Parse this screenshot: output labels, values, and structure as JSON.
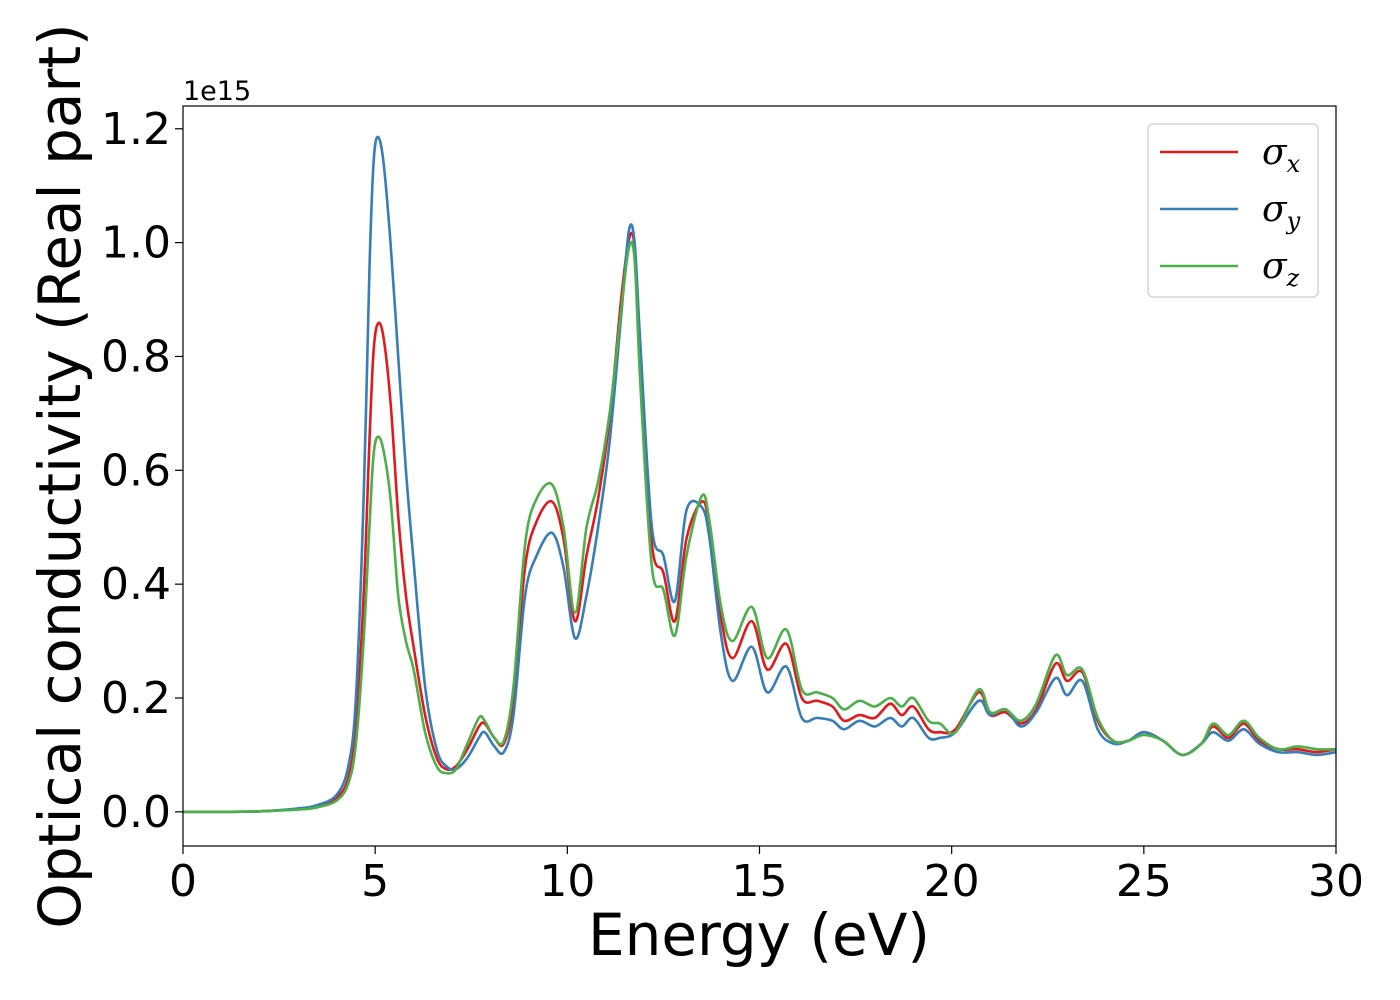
{
  "chart_data": {
    "type": "line",
    "title": "",
    "xlabel": "Energy (eV)",
    "ylabel": "Optical conductivity (Real part)",
    "y_offset_label": "1e15",
    "xlim": [
      0,
      30
    ],
    "ylim": [
      -0.06,
      1.24
    ],
    "x_ticks": [
      0,
      5,
      10,
      15,
      20,
      25,
      30
    ],
    "x_tick_labels": [
      "0",
      "5",
      "10",
      "15",
      "20",
      "25",
      "30"
    ],
    "y_ticks": [
      0.0,
      0.2,
      0.4,
      0.6,
      0.8,
      1.0,
      1.2
    ],
    "y_tick_labels": [
      "0.0",
      "0.2",
      "0.4",
      "0.6",
      "0.8",
      "1.0",
      "1.2"
    ],
    "grid": false,
    "legend_position": "top-right",
    "series": [
      {
        "name": "σx",
        "symbol": "σ",
        "subscript": "x",
        "color": "#e31a1c",
        "x": [
          0,
          1,
          2,
          3,
          3.5,
          4,
          4.3,
          4.5,
          4.7,
          4.85,
          4.95,
          5.05,
          5.2,
          5.4,
          5.6,
          5.8,
          6.0,
          6.3,
          6.6,
          6.85,
          7.1,
          7.4,
          7.7,
          7.85,
          8.1,
          8.35,
          8.6,
          8.9,
          9.2,
          9.6,
          9.9,
          10.2,
          10.5,
          10.8,
          11.1,
          11.4,
          11.6,
          11.75,
          11.9,
          12.2,
          12.5,
          12.8,
          13.1,
          13.5,
          13.7,
          14.0,
          14.3,
          14.8,
          15.2,
          15.7,
          16.1,
          16.5,
          16.9,
          17.2,
          17.6,
          18.0,
          18.4,
          18.7,
          19.0,
          19.4,
          19.7,
          20.1,
          20.7,
          21.0,
          21.4,
          21.8,
          22.2,
          22.7,
          23.0,
          23.4,
          23.8,
          24.2,
          24.6,
          25.0,
          25.5,
          26.0,
          26.5,
          26.8,
          27.2,
          27.6,
          28.0,
          28.5,
          29.0,
          29.5,
          30.0
        ],
        "y": [
          0.0,
          0.0,
          0.001,
          0.005,
          0.01,
          0.025,
          0.06,
          0.15,
          0.38,
          0.65,
          0.8,
          0.855,
          0.84,
          0.72,
          0.52,
          0.38,
          0.29,
          0.17,
          0.095,
          0.075,
          0.08,
          0.11,
          0.15,
          0.155,
          0.13,
          0.12,
          0.2,
          0.43,
          0.51,
          0.545,
          0.48,
          0.335,
          0.45,
          0.55,
          0.69,
          0.9,
          1.005,
          0.99,
          0.78,
          0.47,
          0.42,
          0.335,
          0.48,
          0.545,
          0.5,
          0.34,
          0.27,
          0.335,
          0.25,
          0.295,
          0.2,
          0.195,
          0.185,
          0.16,
          0.17,
          0.165,
          0.19,
          0.17,
          0.185,
          0.145,
          0.14,
          0.145,
          0.21,
          0.17,
          0.175,
          0.155,
          0.18,
          0.26,
          0.23,
          0.245,
          0.16,
          0.125,
          0.125,
          0.14,
          0.125,
          0.1,
          0.12,
          0.15,
          0.13,
          0.155,
          0.125,
          0.11,
          0.11,
          0.105,
          0.11
        ]
      },
      {
        "name": "σy",
        "symbol": "σ",
        "subscript": "y",
        "color": "#377eb8",
        "x": [
          0,
          1,
          2,
          3,
          3.5,
          4,
          4.3,
          4.5,
          4.7,
          4.85,
          4.95,
          5.05,
          5.2,
          5.4,
          5.6,
          5.8,
          6.0,
          6.3,
          6.6,
          6.85,
          7.1,
          7.4,
          7.7,
          7.85,
          8.1,
          8.35,
          8.6,
          8.9,
          9.2,
          9.6,
          9.9,
          10.2,
          10.5,
          10.8,
          11.1,
          11.4,
          11.6,
          11.75,
          11.9,
          12.2,
          12.5,
          12.8,
          13.1,
          13.5,
          13.7,
          14.0,
          14.3,
          14.8,
          15.2,
          15.7,
          16.1,
          16.5,
          16.9,
          17.2,
          17.6,
          18.0,
          18.4,
          18.7,
          19.0,
          19.4,
          19.7,
          20.1,
          20.7,
          21.0,
          21.4,
          21.8,
          22.2,
          22.7,
          23.0,
          23.4,
          23.8,
          24.2,
          24.6,
          25.0,
          25.5,
          26.0,
          26.5,
          26.8,
          27.2,
          27.6,
          28.0,
          28.5,
          29.0,
          29.5,
          30.0
        ],
        "y": [
          0.0,
          0.0,
          0.001,
          0.006,
          0.012,
          0.03,
          0.08,
          0.2,
          0.55,
          0.95,
          1.13,
          1.185,
          1.15,
          1.0,
          0.8,
          0.6,
          0.44,
          0.22,
          0.11,
          0.08,
          0.075,
          0.095,
          0.13,
          0.14,
          0.115,
          0.105,
          0.17,
          0.38,
          0.45,
          0.49,
          0.43,
          0.305,
          0.38,
          0.5,
          0.65,
          0.87,
          1.02,
          1.0,
          0.82,
          0.5,
          0.45,
          0.37,
          0.53,
          0.535,
          0.48,
          0.31,
          0.23,
          0.29,
          0.21,
          0.255,
          0.165,
          0.165,
          0.16,
          0.145,
          0.16,
          0.15,
          0.165,
          0.15,
          0.165,
          0.13,
          0.13,
          0.14,
          0.195,
          0.17,
          0.18,
          0.15,
          0.175,
          0.235,
          0.205,
          0.23,
          0.145,
          0.12,
          0.125,
          0.14,
          0.125,
          0.1,
          0.12,
          0.14,
          0.125,
          0.145,
          0.12,
          0.105,
          0.105,
          0.1,
          0.105
        ]
      },
      {
        "name": "σz",
        "symbol": "σ",
        "subscript": "z",
        "color": "#4daf4a",
        "x": [
          0,
          1,
          2,
          3,
          3.5,
          4,
          4.3,
          4.5,
          4.7,
          4.85,
          4.95,
          5.05,
          5.2,
          5.4,
          5.6,
          5.8,
          6.0,
          6.3,
          6.6,
          6.85,
          7.1,
          7.4,
          7.7,
          7.85,
          8.1,
          8.35,
          8.6,
          8.9,
          9.2,
          9.6,
          9.9,
          10.2,
          10.5,
          10.8,
          11.1,
          11.4,
          11.6,
          11.75,
          11.9,
          12.2,
          12.5,
          12.8,
          13.1,
          13.5,
          13.7,
          14.0,
          14.3,
          14.8,
          15.2,
          15.7,
          16.1,
          16.5,
          16.9,
          17.2,
          17.6,
          18.0,
          18.4,
          18.7,
          19.0,
          19.4,
          19.7,
          20.1,
          20.7,
          21.0,
          21.4,
          21.8,
          22.2,
          22.7,
          23.0,
          23.4,
          23.8,
          24.2,
          24.6,
          25.0,
          25.5,
          26.0,
          26.5,
          26.8,
          27.2,
          27.6,
          28.0,
          28.5,
          29.0,
          29.5,
          30.0
        ],
        "y": [
          0.0,
          0.0,
          0.001,
          0.004,
          0.008,
          0.02,
          0.05,
          0.12,
          0.3,
          0.5,
          0.62,
          0.658,
          0.64,
          0.55,
          0.38,
          0.3,
          0.25,
          0.14,
          0.08,
          0.068,
          0.075,
          0.12,
          0.165,
          0.16,
          0.13,
          0.125,
          0.22,
          0.47,
          0.55,
          0.575,
          0.5,
          0.35,
          0.5,
          0.58,
          0.7,
          0.88,
          0.99,
          0.97,
          0.75,
          0.43,
          0.39,
          0.31,
          0.45,
          0.555,
          0.51,
          0.36,
          0.3,
          0.36,
          0.27,
          0.32,
          0.215,
          0.21,
          0.2,
          0.18,
          0.195,
          0.185,
          0.2,
          0.185,
          0.2,
          0.16,
          0.155,
          0.14,
          0.215,
          0.175,
          0.18,
          0.16,
          0.19,
          0.275,
          0.24,
          0.25,
          0.165,
          0.125,
          0.125,
          0.135,
          0.125,
          0.1,
          0.12,
          0.155,
          0.135,
          0.16,
          0.13,
          0.11,
          0.115,
          0.11,
          0.11
        ]
      }
    ]
  }
}
